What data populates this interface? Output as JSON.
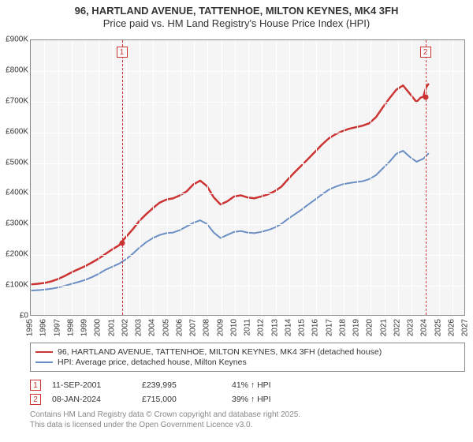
{
  "title": {
    "line1": "96, HARTLAND AVENUE, TATTENHOE, MILTON KEYNES, MK4 3FH",
    "line2": "Price paid vs. HM Land Registry's House Price Index (HPI)",
    "fontsize": 13
  },
  "chart": {
    "type": "line",
    "background_color": "#f5f5f5",
    "grid_color": "#ffffff",
    "border_color": "#888888",
    "x": {
      "min": 1995,
      "max": 2027,
      "step": 1
    },
    "y": {
      "min": 0,
      "max": 900000,
      "step": 100000,
      "tick_labels": [
        "£0",
        "£100K",
        "£200K",
        "£300K",
        "£400K",
        "£500K",
        "£600K",
        "£700K",
        "£800K",
        "£900K"
      ]
    },
    "series": [
      {
        "id": "price_paid",
        "label": "96, HARTLAND AVENUE, TATTENHOE, MILTON KEYNES, MK4 3FH (detached house)",
        "color": "#cc3333",
        "width": 2.5,
        "data": [
          [
            1995.0,
            100000
          ],
          [
            1995.5,
            102000
          ],
          [
            1996.0,
            105000
          ],
          [
            1996.5,
            110000
          ],
          [
            1997.0,
            118000
          ],
          [
            1997.5,
            128000
          ],
          [
            1998.0,
            140000
          ],
          [
            1998.5,
            150000
          ],
          [
            1999.0,
            160000
          ],
          [
            1999.5,
            172000
          ],
          [
            2000.0,
            185000
          ],
          [
            2000.5,
            200000
          ],
          [
            2001.0,
            215000
          ],
          [
            2001.5,
            228000
          ],
          [
            2001.7,
            239995
          ],
          [
            2002.0,
            255000
          ],
          [
            2002.5,
            280000
          ],
          [
            2003.0,
            308000
          ],
          [
            2003.5,
            330000
          ],
          [
            2004.0,
            350000
          ],
          [
            2004.5,
            368000
          ],
          [
            2005.0,
            378000
          ],
          [
            2005.5,
            382000
          ],
          [
            2006.0,
            392000
          ],
          [
            2006.5,
            405000
          ],
          [
            2007.0,
            428000
          ],
          [
            2007.5,
            440000
          ],
          [
            2008.0,
            422000
          ],
          [
            2008.5,
            385000
          ],
          [
            2009.0,
            362000
          ],
          [
            2009.5,
            372000
          ],
          [
            2010.0,
            388000
          ],
          [
            2010.5,
            392000
          ],
          [
            2011.0,
            385000
          ],
          [
            2011.5,
            382000
          ],
          [
            2012.0,
            388000
          ],
          [
            2012.5,
            395000
          ],
          [
            2013.0,
            405000
          ],
          [
            2013.5,
            420000
          ],
          [
            2014.0,
            445000
          ],
          [
            2014.5,
            468000
          ],
          [
            2015.0,
            490000
          ],
          [
            2015.5,
            512000
          ],
          [
            2016.0,
            535000
          ],
          [
            2016.5,
            558000
          ],
          [
            2017.0,
            578000
          ],
          [
            2017.5,
            592000
          ],
          [
            2018.0,
            602000
          ],
          [
            2018.5,
            610000
          ],
          [
            2019.0,
            615000
          ],
          [
            2019.5,
            620000
          ],
          [
            2020.0,
            628000
          ],
          [
            2020.5,
            648000
          ],
          [
            2021.0,
            680000
          ],
          [
            2021.5,
            710000
          ],
          [
            2022.0,
            738000
          ],
          [
            2022.5,
            752000
          ],
          [
            2023.0,
            725000
          ],
          [
            2023.5,
            698000
          ],
          [
            2023.8,
            712000
          ],
          [
            2024.0,
            715000
          ],
          [
            2024.2,
            745000
          ],
          [
            2024.4,
            758000
          ]
        ]
      },
      {
        "id": "hpi",
        "label": "HPI: Average price, detached house, Milton Keynes",
        "color": "#6b8fc5",
        "width": 2,
        "data": [
          [
            1995.0,
            80000
          ],
          [
            1995.5,
            81000
          ],
          [
            1996.0,
            83000
          ],
          [
            1996.5,
            86000
          ],
          [
            1997.0,
            90000
          ],
          [
            1997.5,
            96000
          ],
          [
            1998.0,
            102000
          ],
          [
            1998.5,
            108000
          ],
          [
            1999.0,
            115000
          ],
          [
            1999.5,
            124000
          ],
          [
            2000.0,
            135000
          ],
          [
            2000.5,
            148000
          ],
          [
            2001.0,
            158000
          ],
          [
            2001.5,
            168000
          ],
          [
            2002.0,
            182000
          ],
          [
            2002.5,
            200000
          ],
          [
            2003.0,
            220000
          ],
          [
            2003.5,
            238000
          ],
          [
            2004.0,
            252000
          ],
          [
            2004.5,
            262000
          ],
          [
            2005.0,
            268000
          ],
          [
            2005.5,
            270000
          ],
          [
            2006.0,
            278000
          ],
          [
            2006.5,
            290000
          ],
          [
            2007.0,
            302000
          ],
          [
            2007.5,
            310000
          ],
          [
            2008.0,
            298000
          ],
          [
            2008.5,
            270000
          ],
          [
            2009.0,
            252000
          ],
          [
            2009.5,
            262000
          ],
          [
            2010.0,
            272000
          ],
          [
            2010.5,
            275000
          ],
          [
            2011.0,
            270000
          ],
          [
            2011.5,
            268000
          ],
          [
            2012.0,
            272000
          ],
          [
            2012.5,
            278000
          ],
          [
            2013.0,
            286000
          ],
          [
            2013.5,
            298000
          ],
          [
            2014.0,
            315000
          ],
          [
            2014.5,
            330000
          ],
          [
            2015.0,
            345000
          ],
          [
            2015.5,
            362000
          ],
          [
            2016.0,
            378000
          ],
          [
            2016.5,
            395000
          ],
          [
            2017.0,
            410000
          ],
          [
            2017.5,
            420000
          ],
          [
            2018.0,
            428000
          ],
          [
            2018.5,
            432000
          ],
          [
            2019.0,
            435000
          ],
          [
            2019.5,
            438000
          ],
          [
            2020.0,
            445000
          ],
          [
            2020.5,
            458000
          ],
          [
            2021.0,
            480000
          ],
          [
            2021.5,
            502000
          ],
          [
            2022.0,
            528000
          ],
          [
            2022.5,
            538000
          ],
          [
            2023.0,
            518000
          ],
          [
            2023.5,
            502000
          ],
          [
            2024.0,
            512000
          ],
          [
            2024.4,
            530000
          ]
        ]
      }
    ],
    "markers": [
      {
        "n": "1",
        "x": 2001.7,
        "y": 239995
      },
      {
        "n": "2",
        "x": 2024.02,
        "y": 715000
      }
    ]
  },
  "legend": {
    "border_color": "#888888"
  },
  "transactions": [
    {
      "n": "1",
      "date": "11-SEP-2001",
      "price": "£239,995",
      "pct": "41% ↑ HPI"
    },
    {
      "n": "2",
      "date": "08-JAN-2024",
      "price": "£715,000",
      "pct": "39% ↑ HPI"
    }
  ],
  "footer": {
    "line1": "Contains HM Land Registry data © Crown copyright and database right 2025.",
    "line2": "This data is licensed under the Open Government Licence v3.0."
  }
}
